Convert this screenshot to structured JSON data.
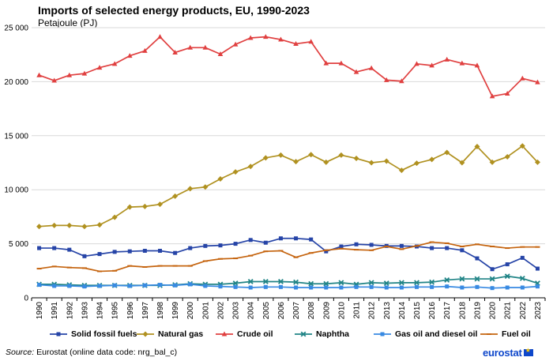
{
  "header": {
    "title": "Imports of selected energy products, EU, 1990-2023",
    "subtitle": "Petajoule (PJ)"
  },
  "footer": {
    "source_label": "Source:",
    "source_text": "Eurostat (online data code: nrg_bal_c)",
    "logo_text": "eurostat"
  },
  "chart_data": {
    "type": "line",
    "title": "Imports of selected energy products, EU, 1990-2023",
    "ylabel": "Petajoule (PJ)",
    "xlabel": "",
    "ylim": [
      0,
      25000
    ],
    "yticks": [
      0,
      5000,
      10000,
      15000,
      20000,
      25000
    ],
    "ytick_labels": [
      "0",
      "5 000",
      "10 000",
      "15 000",
      "20 000",
      "25 000"
    ],
    "grid": true,
    "legend_position": "bottom",
    "x": [
      "1990",
      "1991",
      "1992",
      "1993",
      "1994",
      "1995",
      "1996",
      "1997",
      "1998",
      "1999",
      "2000",
      "2001",
      "2002",
      "2003",
      "2004",
      "2005",
      "2006",
      "2007",
      "2008",
      "2009",
      "2010",
      "2011",
      "2012",
      "2013",
      "2014",
      "2015",
      "2016",
      "2017",
      "2018",
      "2019",
      "2020",
      "2021",
      "2022",
      "2023"
    ],
    "series": [
      {
        "name": "Solid fossil fuels",
        "color": "#2644a7",
        "marker": "square",
        "values": [
          4600,
          4600,
          4450,
          3850,
          4050,
          4250,
          4300,
          4350,
          4350,
          4150,
          4600,
          4800,
          4850,
          5000,
          5350,
          5100,
          5500,
          5500,
          5400,
          4300,
          4750,
          4950,
          4900,
          4800,
          4800,
          4750,
          4600,
          4600,
          4400,
          3650,
          2650,
          3100,
          3700,
          2700
        ]
      },
      {
        "name": "Natural gas",
        "color": "#b09120",
        "marker": "diamond",
        "values": [
          6600,
          6700,
          6700,
          6600,
          6750,
          7450,
          8400,
          8450,
          8650,
          9400,
          10100,
          10250,
          11000,
          11650,
          12150,
          12950,
          13200,
          12600,
          13250,
          12550,
          13200,
          12900,
          12500,
          12650,
          11800,
          12450,
          12800,
          13450,
          12500,
          14000,
          12550,
          13050,
          14050,
          12550
        ]
      },
      {
        "name": "Crude oil",
        "color": "#e04040",
        "marker": "triangle",
        "values": [
          20600,
          20100,
          20600,
          20750,
          21300,
          21650,
          22400,
          22850,
          24150,
          22700,
          23150,
          23150,
          22550,
          23450,
          24050,
          24150,
          23900,
          23500,
          23700,
          21700,
          21700,
          20900,
          21250,
          20150,
          20050,
          21650,
          21500,
          22050,
          21700,
          21500,
          18650,
          18900,
          20300,
          19950
        ]
      },
      {
        "name": "Naphtha",
        "color": "#208486",
        "marker": "x",
        "values": [
          1250,
          1250,
          1200,
          1150,
          1150,
          1150,
          1150,
          1150,
          1150,
          1200,
          1300,
          1250,
          1250,
          1350,
          1500,
          1500,
          1500,
          1450,
          1300,
          1300,
          1400,
          1250,
          1400,
          1350,
          1400,
          1400,
          1450,
          1650,
          1750,
          1750,
          1750,
          2000,
          1800,
          1350
        ]
      },
      {
        "name": "Gas oil and diesel oil",
        "color": "#388ae2",
        "marker": "square",
        "values": [
          1200,
          1100,
          1100,
          1050,
          1100,
          1150,
          1100,
          1150,
          1200,
          1150,
          1250,
          1100,
          1050,
          1000,
          950,
          1000,
          1000,
          950,
          950,
          950,
          950,
          1000,
          1000,
          950,
          950,
          1000,
          1000,
          1050,
          950,
          1000,
          900,
          950,
          950,
          1050
        ]
      },
      {
        "name": "Fuel oil",
        "color": "#c5640f",
        "marker": "dash",
        "values": [
          2700,
          2900,
          2800,
          2750,
          2450,
          2500,
          2950,
          2850,
          2950,
          2950,
          2950,
          3400,
          3600,
          3650,
          3900,
          4300,
          4350,
          3750,
          4150,
          4400,
          4550,
          4450,
          4400,
          4750,
          4500,
          4800,
          5150,
          5050,
          4750,
          4950,
          4750,
          4600,
          4700,
          4700
        ]
      }
    ]
  }
}
